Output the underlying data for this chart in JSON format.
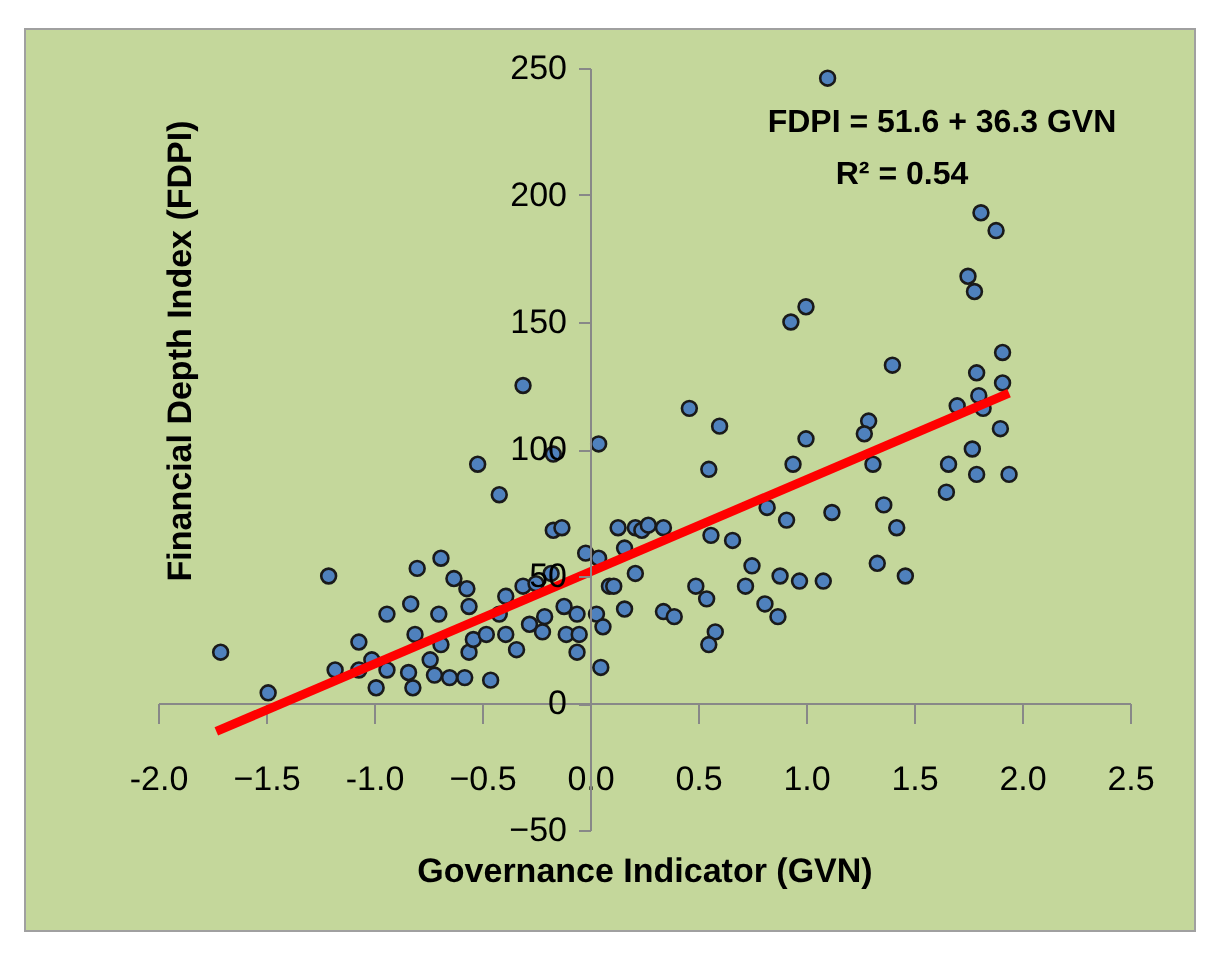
{
  "chart_data": {
    "type": "scatter",
    "xlabel": "Governance Indicator (GVN)",
    "ylabel": "Financial Depth Index   (FDPI)",
    "annotations": [
      "FDPI = 51.6 + 36.3 GVN",
      "R² = 0.54"
    ],
    "xlim": [
      -2.0,
      2.5
    ],
    "ylim": [
      -50,
      250
    ],
    "xticks": [
      {
        "value": -2.0,
        "label": "-2.0"
      },
      -1.5,
      {
        "value": -1.0,
        "label": "-1.0"
      },
      -0.5,
      {
        "value": 0,
        "label": "0.0"
      },
      0.5,
      {
        "value": 1.0,
        "label": "1.0"
      },
      1.5,
      {
        "value": 2.0,
        "label": "2.0"
      },
      2.5
    ],
    "yticks": [
      -50,
      0,
      50,
      100,
      150,
      200,
      250
    ],
    "grid": false,
    "marker": "circle",
    "series": [
      {
        "color": "#4f81bd",
        "x": [
          -1.71,
          -1.49,
          -1.21,
          -1.07,
          -0.94,
          -0.83,
          -0.8,
          -0.69,
          -0.63,
          -0.57,
          -0.56,
          -0.7,
          -0.81,
          -0.74,
          -0.72,
          -0.82,
          -0.99,
          -0.94,
          -1.07,
          -0.84,
          -0.58,
          -0.56,
          -0.54,
          -0.31,
          0.04,
          -0.17,
          -0.52,
          -0.42,
          -0.17,
          -0.13,
          -0.02,
          0.04,
          -0.18,
          -0.39,
          -0.31,
          -0.25,
          -0.42,
          -0.48,
          -0.39,
          -0.34,
          -0.28,
          -0.21,
          -0.22,
          -0.12,
          -0.11,
          -0.05,
          -0.06,
          -0.06,
          0.03,
          0.06,
          0.05,
          0.09,
          0.11,
          0.16,
          0.16,
          0.13,
          0.21,
          0.24,
          0.27,
          0.34,
          0.21,
          0.34,
          0.39,
          0.46,
          0.6,
          0.55,
          0.56,
          0.66,
          0.49,
          0.54,
          0.58,
          0.55,
          0.75,
          0.72,
          0.81,
          0.87,
          0.88,
          0.97,
          0.82,
          0.91,
          0.94,
          1.0,
          0.93,
          1.0,
          1.1,
          1.4,
          1.81,
          1.88,
          1.75,
          1.78,
          1.91,
          1.79,
          1.91,
          1.8,
          1.7,
          1.82,
          1.9,
          1.77,
          1.66,
          1.79,
          1.94,
          1.65,
          1.29,
          1.27,
          1.31,
          1.12,
          1.36,
          1.42,
          1.33,
          1.46,
          1.08,
          -1.18,
          -1.01,
          -0.69,
          -0.65,
          -0.46
        ],
        "values": [
          20,
          4,
          50,
          24,
          35,
          39,
          53,
          57,
          49,
          45,
          38,
          35,
          27,
          17,
          11,
          6,
          6,
          13,
          13,
          12,
          10,
          20,
          25,
          125,
          102,
          98,
          94,
          82,
          68,
          69,
          59,
          57,
          51,
          42,
          46,
          47,
          35,
          27,
          27,
          21,
          31,
          34,
          28,
          38,
          27,
          27,
          35,
          20,
          35,
          30,
          14,
          46,
          46,
          37,
          61,
          69,
          69,
          68,
          70,
          69,
          51,
          36,
          34,
          116,
          109,
          92,
          66,
          64,
          46,
          41,
          28,
          23,
          54,
          46,
          39,
          34,
          50,
          48,
          77,
          72,
          94,
          104,
          150,
          156,
          246,
          133,
          193,
          186,
          168,
          162,
          138,
          130,
          126,
          121,
          117,
          116,
          108,
          100,
          94,
          90,
          90,
          83,
          111,
          106,
          94,
          75,
          78,
          69,
          55,
          50,
          48,
          13,
          17,
          23,
          10,
          9
        ]
      },
      {
        "type": "line",
        "marker": "none",
        "color": "#ff0000",
        "x": [
          -1.73,
          1.94
        ],
        "values": [
          -11.2,
          122.0
        ]
      }
    ]
  }
}
